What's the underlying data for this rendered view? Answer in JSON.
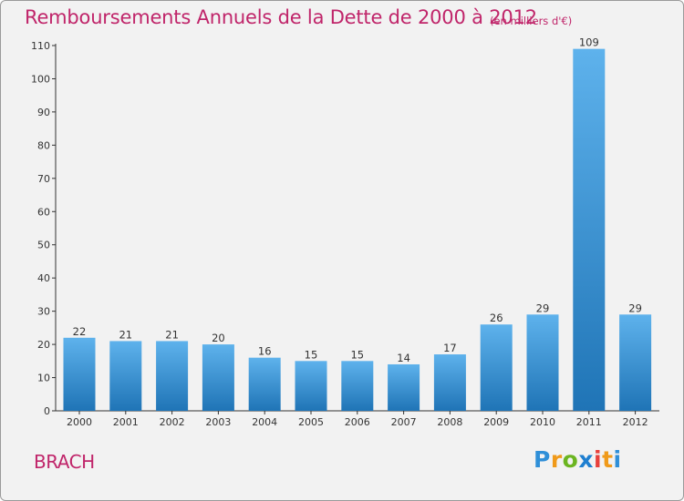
{
  "title": "Remboursements Annuels de la Dette de 2000 à 2012",
  "subtitle": "(en milliers d'€)",
  "commune": "BRACH",
  "logo": {
    "letters": [
      "P",
      "r",
      "o",
      "x",
      "i",
      "t",
      "i"
    ],
    "colors": [
      "#2f8fd8",
      "#f09a1a",
      "#6bb521",
      "#1f7fd0",
      "#e8413c",
      "#f09a1a",
      "#2f8fd8"
    ]
  },
  "colors": {
    "bar_top": "#5eb2ec",
    "bar_bottom": "#1f74b6",
    "title": "#c0256a"
  },
  "chart_data": {
    "type": "bar",
    "categories": [
      "2000",
      "2001",
      "2002",
      "2003",
      "2004",
      "2005",
      "2006",
      "2007",
      "2008",
      "2009",
      "2010",
      "2011",
      "2012"
    ],
    "values": [
      22,
      21,
      21,
      20,
      16,
      15,
      15,
      14,
      17,
      26,
      29,
      109,
      29
    ],
    "ylim": [
      0,
      110
    ],
    "yticks": [
      0,
      10,
      20,
      30,
      40,
      50,
      60,
      70,
      80,
      90,
      100,
      110
    ],
    "grid": false,
    "legend": "none"
  }
}
